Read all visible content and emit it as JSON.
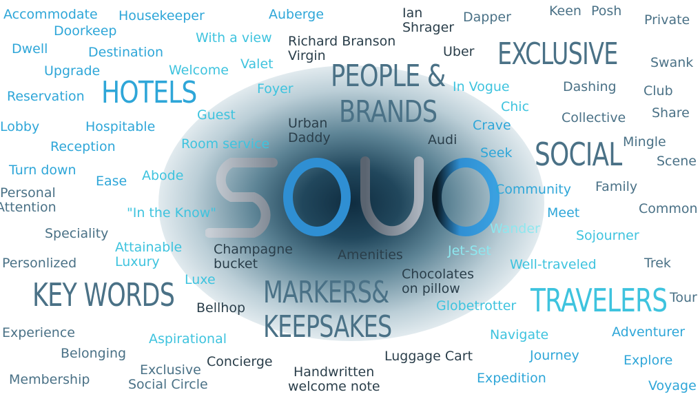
{
  "colors": {
    "blue": "#2ea6d8",
    "cyan": "#3ec3de",
    "slate": "#4a7186",
    "dark": "#2a3e4a",
    "pale_cyan": "#8ee7ef",
    "logo_gray": "#8e97a3",
    "logo_blue": "#2f8fd3"
  },
  "logo": {
    "text": "SOJO"
  },
  "headings": {
    "hotels": "HOTELS",
    "people_brands": [
      "PEOPLE &",
      "BRANDS"
    ],
    "exclusive": "EXCLUSIVE",
    "social": "SOCIAL",
    "key_words": "KEY WORDS",
    "markers": [
      "MARKERS&",
      "KEEPSAKES"
    ],
    "travelers": "TRAVELERS"
  },
  "words": {
    "accommodate": "Accommodate",
    "housekeeper": "Housekeeper",
    "auberge": "Auberge",
    "ian_shrager": [
      "Ian",
      "Shrager"
    ],
    "dapper": "Dapper",
    "keen": "Keen",
    "posh": "Posh",
    "private": "Private",
    "doorkeep": "Doorkeep",
    "with_a_view": "With a view",
    "richard_branson": [
      "Richard Branson",
      "Virgin"
    ],
    "dwell": "Dwell",
    "destination": "Destination",
    "uber": "Uber",
    "valet": "Valet",
    "swank": "Swank",
    "upgrade": "Upgrade",
    "welcome": "Welcome",
    "foyer": "Foyer",
    "in_vogue": "In Vogue",
    "dashing": "Dashing",
    "club": "Club",
    "reservation": "Reservation",
    "chic": "Chic",
    "share": "Share",
    "guest": "Guest",
    "collective": "Collective",
    "lobby": "Lobby",
    "hospitable": "Hospitable",
    "urban_daddy": [
      "Urban",
      "Daddy"
    ],
    "crave": "Crave",
    "audi": "Audi",
    "mingle": "Mingle",
    "reception": "Reception",
    "room_service": "Room service",
    "seek": "Seek",
    "scene": "Scene",
    "turn_down": "Turn down",
    "abode": "Abode",
    "ease": "Ease",
    "family": "Family",
    "community": "Community",
    "personal_attention": [
      "Personal",
      "Attention"
    ],
    "common": "Common",
    "in_the_know": "\"In the Know\"",
    "meet": "Meet",
    "speciality": "Speciality",
    "wander": "Wander",
    "sojourner": "Sojourner",
    "attainable_luxury": [
      "Attainable",
      "Luxury"
    ],
    "champagne_bucket": [
      "Champagne",
      "bucket"
    ],
    "amenities": "Amenities",
    "jet_set": "Jet-Set",
    "personlized": "Personlized",
    "well_traveled": "Well-traveled",
    "trek": "Trek",
    "chocolates_on_pillow": [
      "Chocolates",
      "on pillow"
    ],
    "luxe": "Luxe",
    "bellhop": "Bellhop",
    "globetrotter": "Globetrotter",
    "tour": "Tour",
    "experience": "Experience",
    "aspirational": "Aspirational",
    "navigate": "Navigate",
    "adventurer": "Adventurer",
    "belonging": "Belonging",
    "luggage_cart": "Luggage Cart",
    "journey": "Journey",
    "concierge": "Concierge",
    "exclusive_social_circle": [
      "Exclusive",
      "Social Circle"
    ],
    "explore": "Explore",
    "handwritten_welcome_note": [
      "Handwritten",
      "welcome note"
    ],
    "membership": "Membership",
    "expedition": "Expedition",
    "voyage": "Voyage"
  }
}
